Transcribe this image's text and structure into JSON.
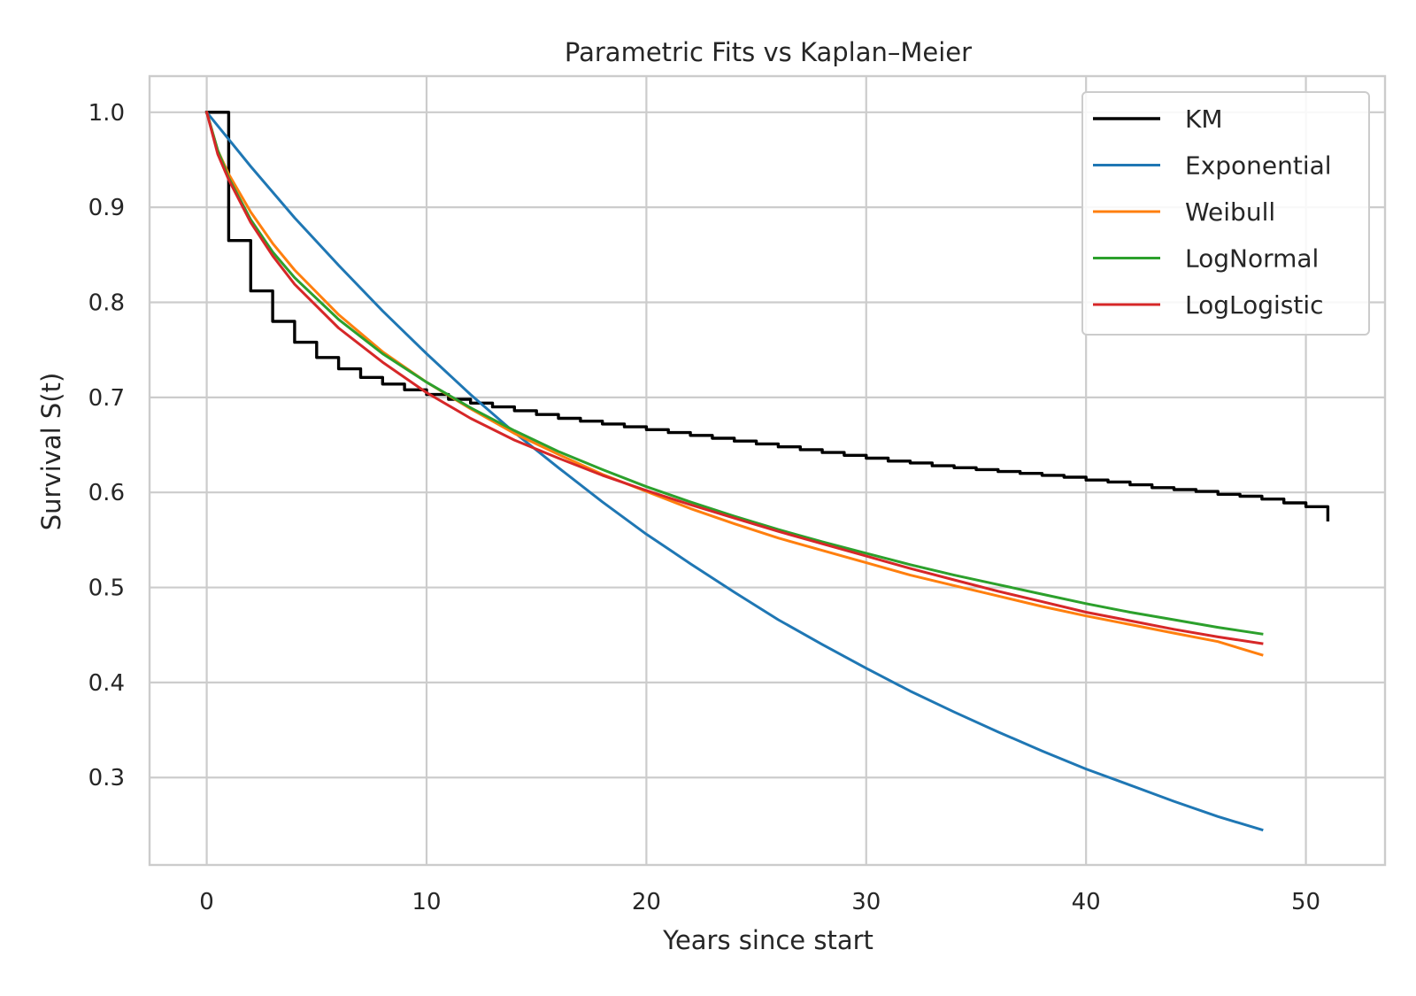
{
  "chart_data": {
    "type": "line",
    "title": "Parametric Fits vs Kaplan–Meier",
    "xlabel": "Years since start",
    "ylabel": "Survival S(t)",
    "xlim": [
      -2.6,
      53.6
    ],
    "ylim": [
      0.208,
      1.038
    ],
    "x_ticks": [
      0,
      10,
      20,
      30,
      40,
      50
    ],
    "y_ticks": [
      0.3,
      0.4,
      0.5,
      0.6,
      0.7,
      0.8,
      0.9,
      1.0
    ],
    "x_tick_labels": [
      "0",
      "10",
      "20",
      "30",
      "40",
      "50"
    ],
    "y_tick_labels": [
      "0.3",
      "0.4",
      "0.5",
      "0.6",
      "0.7",
      "0.8",
      "0.9",
      "1.0"
    ],
    "grid": true,
    "legend_position": "top-right",
    "series": [
      {
        "name": "KM",
        "color": "#000000",
        "step": true,
        "x": [
          0,
          1,
          2,
          3,
          4,
          5,
          6,
          7,
          8,
          9,
          10,
          11,
          12,
          13,
          14,
          15,
          16,
          17,
          18,
          19,
          20,
          21,
          22,
          23,
          24,
          25,
          26,
          27,
          28,
          29,
          30,
          31,
          32,
          33,
          34,
          35,
          36,
          37,
          38,
          39,
          40,
          41,
          42,
          43,
          44,
          45,
          46,
          47,
          48,
          49,
          50,
          51
        ],
        "y": [
          1.0,
          0.865,
          0.812,
          0.78,
          0.758,
          0.742,
          0.73,
          0.721,
          0.714,
          0.708,
          0.703,
          0.698,
          0.694,
          0.69,
          0.686,
          0.682,
          0.678,
          0.675,
          0.672,
          0.669,
          0.666,
          0.663,
          0.66,
          0.657,
          0.654,
          0.651,
          0.648,
          0.645,
          0.642,
          0.639,
          0.636,
          0.633,
          0.631,
          0.628,
          0.626,
          0.624,
          0.622,
          0.62,
          0.618,
          0.616,
          0.613,
          0.611,
          0.608,
          0.605,
          0.603,
          0.601,
          0.598,
          0.596,
          0.593,
          0.589,
          0.585,
          0.578
        ],
        "end_y": 0.571
      },
      {
        "name": "Exponential",
        "color": "#1f77b4",
        "x": [
          0,
          2,
          4,
          6,
          8,
          10,
          12,
          14,
          16,
          18,
          20,
          22,
          24,
          26,
          28,
          30,
          32,
          34,
          36,
          38,
          40,
          42,
          44,
          46,
          48
        ],
        "y": [
          1.0,
          0.943,
          0.889,
          0.839,
          0.791,
          0.746,
          0.703,
          0.663,
          0.626,
          0.59,
          0.556,
          0.525,
          0.495,
          0.466,
          0.44,
          0.415,
          0.391,
          0.369,
          0.348,
          0.328,
          0.309,
          0.292,
          0.275,
          0.259,
          0.245
        ]
      },
      {
        "name": "Weibull",
        "color": "#ff7f0e",
        "x": [
          0,
          0.5,
          1,
          2,
          3,
          4,
          6,
          8,
          10,
          12,
          14,
          16,
          18,
          20,
          22,
          24,
          26,
          28,
          30,
          32,
          34,
          36,
          38,
          40,
          42,
          44,
          46,
          48
        ],
        "y": [
          1.0,
          0.96,
          0.935,
          0.895,
          0.862,
          0.834,
          0.787,
          0.748,
          0.716,
          0.688,
          0.662,
          0.64,
          0.619,
          0.601,
          0.583,
          0.567,
          0.552,
          0.539,
          0.526,
          0.513,
          0.502,
          0.491,
          0.48,
          0.47,
          0.461,
          0.452,
          0.443,
          0.429
        ]
      },
      {
        "name": "LogNormal",
        "color": "#2ca02c",
        "x": [
          0,
          0.5,
          1,
          2,
          3,
          4,
          6,
          8,
          10,
          12,
          14,
          16,
          18,
          20,
          22,
          24,
          26,
          28,
          30,
          32,
          34,
          36,
          38,
          40,
          42,
          44,
          46,
          48
        ],
        "y": [
          1.0,
          0.96,
          0.931,
          0.887,
          0.853,
          0.826,
          0.782,
          0.746,
          0.716,
          0.689,
          0.665,
          0.643,
          0.624,
          0.606,
          0.59,
          0.575,
          0.561,
          0.548,
          0.536,
          0.524,
          0.513,
          0.503,
          0.493,
          0.483,
          0.474,
          0.466,
          0.458,
          0.451
        ]
      },
      {
        "name": "LogLogistic",
        "color": "#d62728",
        "x": [
          0,
          0.5,
          1,
          2,
          3,
          4,
          6,
          8,
          10,
          12,
          14,
          16,
          18,
          20,
          22,
          24,
          26,
          28,
          30,
          32,
          34,
          36,
          38,
          40,
          42,
          44,
          46,
          48
        ],
        "y": [
          1.0,
          0.956,
          0.929,
          0.884,
          0.849,
          0.819,
          0.773,
          0.737,
          0.705,
          0.678,
          0.655,
          0.636,
          0.618,
          0.602,
          0.587,
          0.573,
          0.559,
          0.546,
          0.533,
          0.52,
          0.508,
          0.496,
          0.485,
          0.474,
          0.465,
          0.456,
          0.448,
          0.441
        ]
      }
    ]
  }
}
